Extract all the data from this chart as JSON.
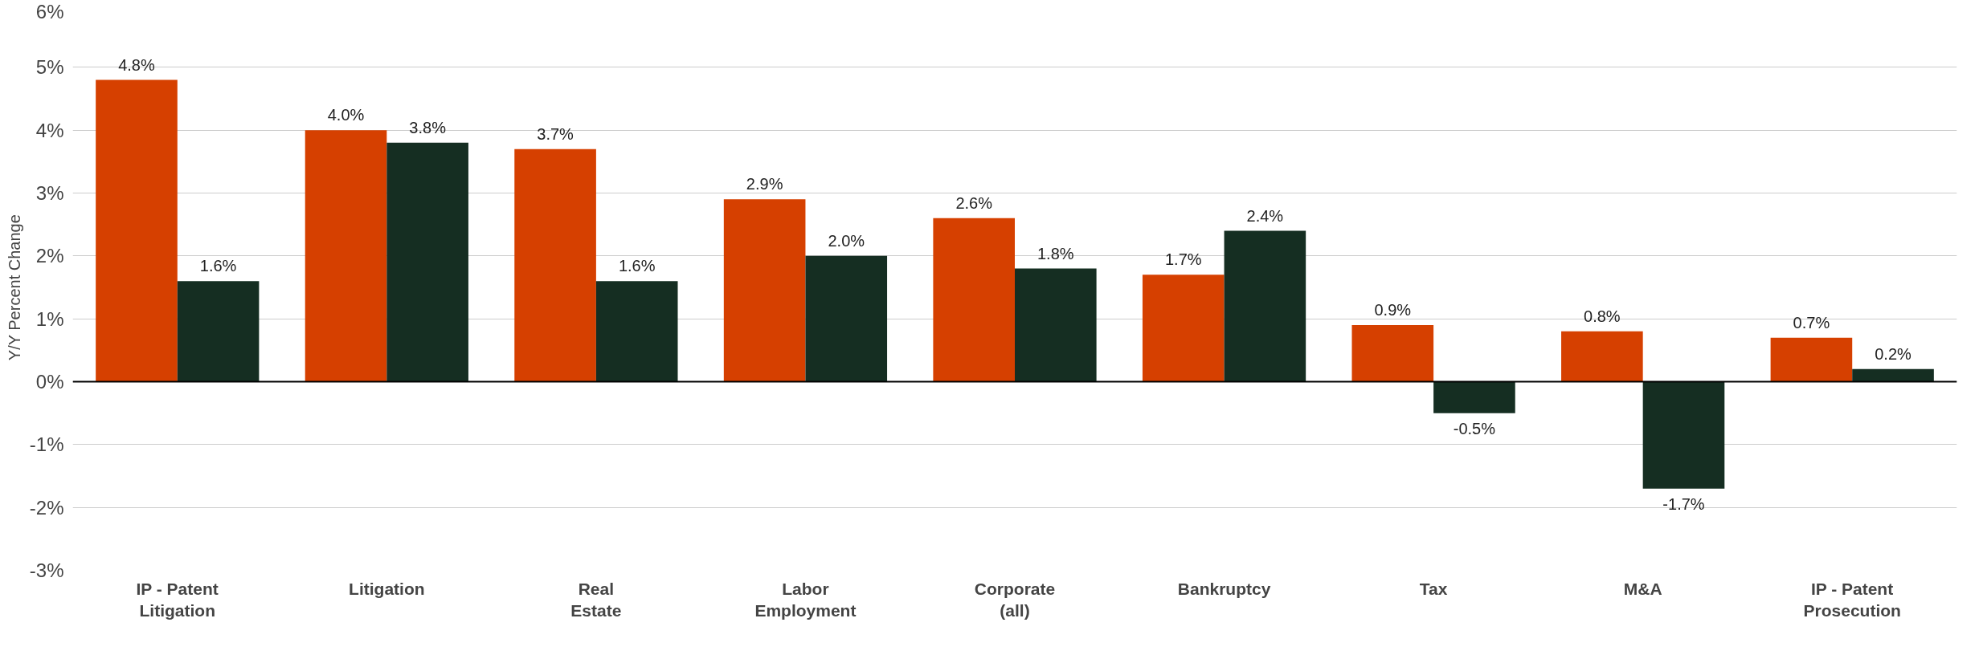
{
  "chart_data": {
    "type": "bar",
    "ylabel": "Y/Y Percent Change",
    "categories": [
      "IP - Patent\nLitigation",
      "Litigation",
      "Real\nEstate",
      "Labor\nEmployment",
      "Corporate\n(all)",
      "Bankruptcy",
      "Tax",
      "M&A",
      "IP - Patent\nProsecution"
    ],
    "series": [
      {
        "color": "#d64000",
        "values": [
          4.8,
          4.0,
          3.7,
          2.9,
          2.6,
          1.7,
          0.9,
          0.8,
          0.7
        ],
        "value_labels": [
          "4.8%",
          "4.0%",
          "3.7%",
          "2.9%",
          "2.6%",
          "1.7%",
          "0.9%",
          "0.8%",
          "0.7%"
        ]
      },
      {
        "color": "#152e22",
        "values": [
          1.6,
          3.8,
          1.6,
          2.0,
          1.8,
          2.4,
          -0.5,
          -1.7,
          0.2
        ],
        "value_labels": [
          "1.6%",
          "3.8%",
          "1.6%",
          "2.0%",
          "1.8%",
          "2.4%",
          "-0.5%",
          "-1.7%",
          "0.2%"
        ]
      }
    ],
    "ylim": [
      -3,
      6
    ],
    "yticks": [
      {
        "value": -3,
        "label": "-3%"
      },
      {
        "value": -2,
        "label": "-2%"
      },
      {
        "value": -1,
        "label": "-1%"
      },
      {
        "value": 0,
        "label": "0%"
      },
      {
        "value": 1,
        "label": "1%"
      },
      {
        "value": 2,
        "label": "2%"
      },
      {
        "value": 3,
        "label": "3%"
      },
      {
        "value": 4,
        "label": "4%"
      },
      {
        "value": 5,
        "label": "5%"
      },
      {
        "value": 6,
        "label": "6%"
      }
    ],
    "grid": "y"
  }
}
